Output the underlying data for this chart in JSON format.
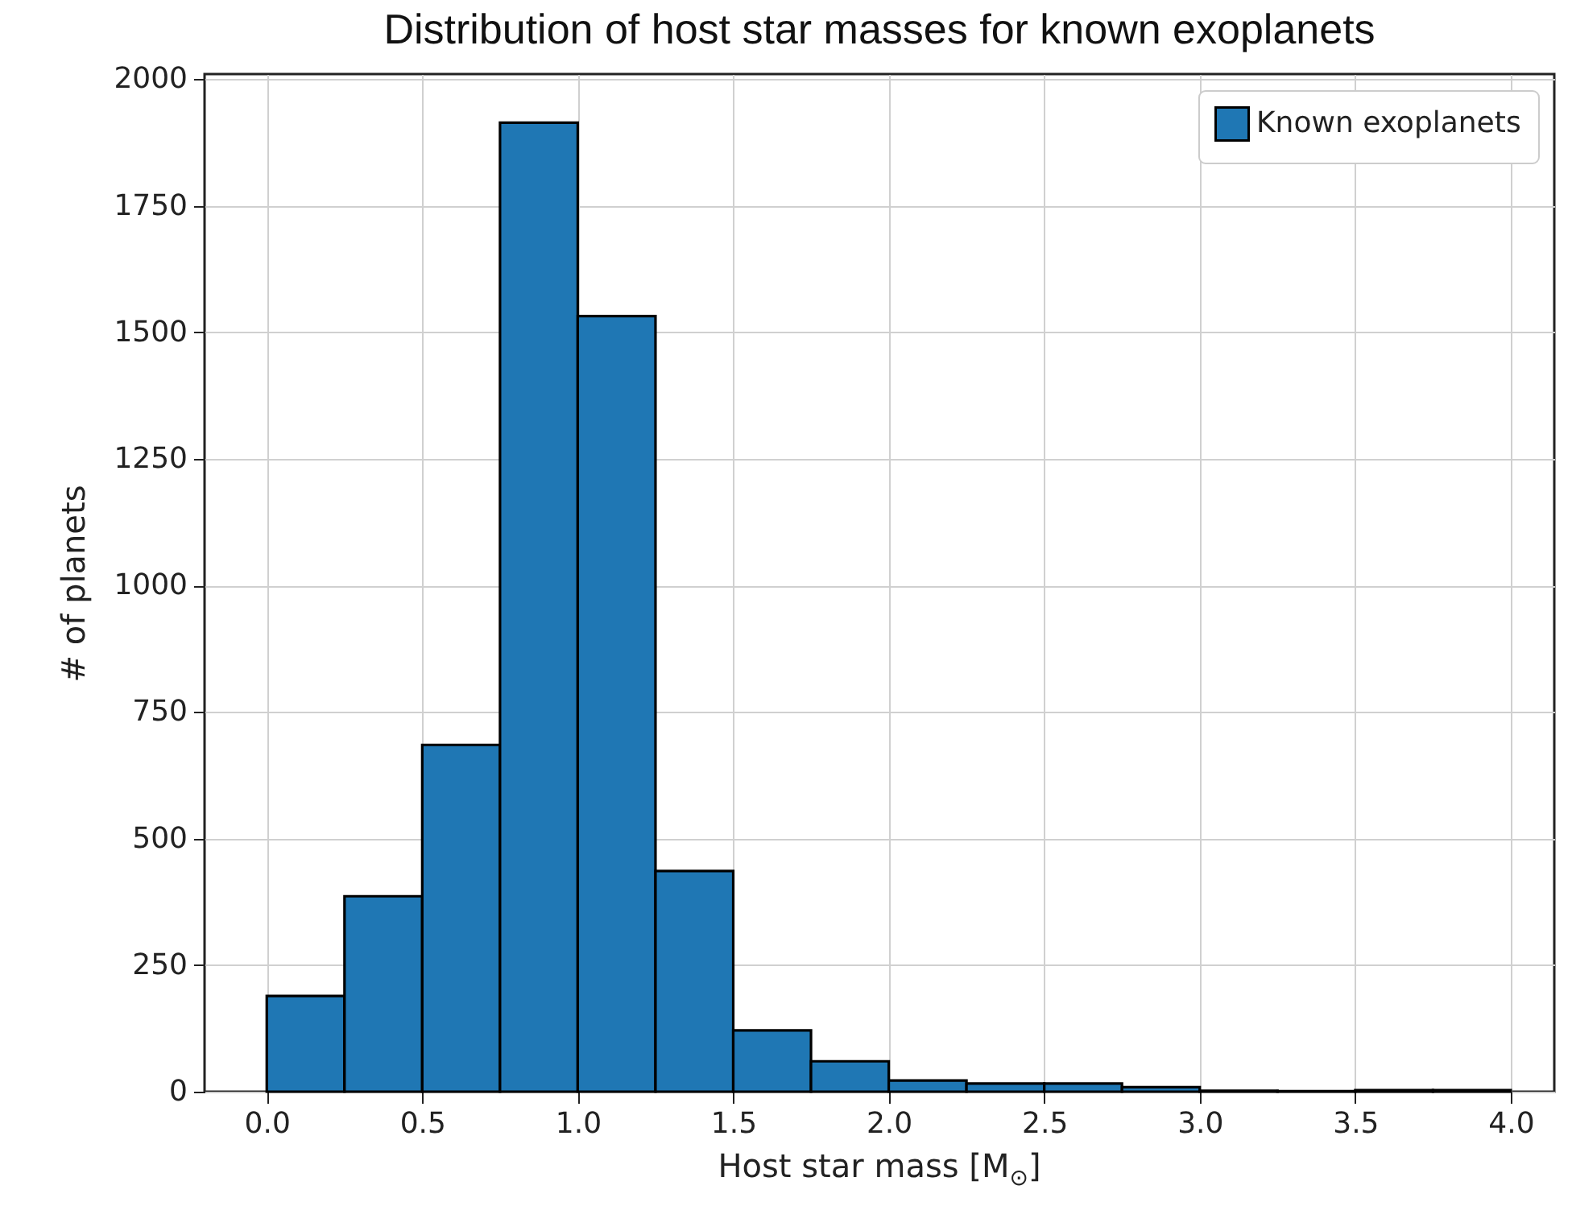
{
  "chart_data": {
    "type": "histogram",
    "title": "Distribution of host star masses for known exoplanets",
    "xlabel": "Host star mass [M$_{⊙}$]",
    "ylabel": "# of planets",
    "bins": [
      0,
      0.25,
      0.5,
      0.75,
      1.0,
      1.25,
      1.5,
      1.75,
      2.0,
      2.25,
      2.5,
      2.75,
      3.0,
      3.25,
      3.5,
      3.75,
      4.0
    ],
    "series": [
      {
        "name": "Known exoplanets",
        "color": "#1f77b4",
        "values": [
          189,
          386,
          685,
          1914,
          1532,
          436,
          121,
          60,
          22,
          16,
          16,
          9,
          2,
          1,
          3,
          3
        ]
      }
    ],
    "xlim": [
      -0.2,
      4.14
    ],
    "xticks": [
      {
        "value": 0,
        "label": "0.0"
      },
      0.5,
      {
        "value": 1,
        "label": "1.0"
      },
      1.5,
      {
        "value": 2,
        "label": "2.0"
      },
      2.5,
      {
        "value": 3,
        "label": "3.0"
      },
      3.5,
      {
        "value": 4,
        "label": "4.0"
      }
    ],
    "ylim": [
      0,
      2010
    ],
    "yticks": [
      0,
      250,
      500,
      750,
      1000,
      1250,
      1500,
      1750,
      2000
    ],
    "grid": true,
    "legend": "top right"
  }
}
